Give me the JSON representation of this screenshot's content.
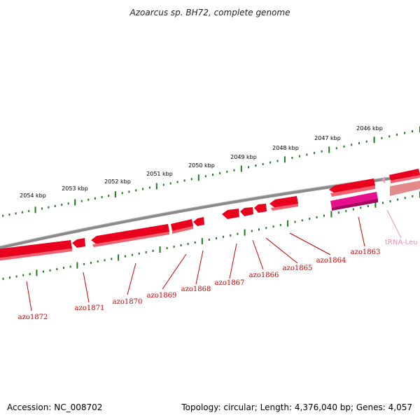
{
  "title": "Azoarcus sp. BH72, complete genome",
  "footer": {
    "accession": "Accession: NC_008702",
    "summary": "Topology: circular; Length: 4,376,040 bp; Genes: 4,057"
  },
  "colors": {
    "backbone": "#8a8a8a",
    "tick": "#1e7a1e",
    "gene": "#e8001c",
    "gene_label": "#cc0000",
    "trna": "#f08cb4",
    "pseudo": "#e60f8c"
  },
  "scale_labels": [
    "2054 kbp",
    "2053 kbp",
    "2052 kbp",
    "2051 kbp",
    "2050 kbp",
    "2049 kbp",
    "2048 kbp",
    "2047 kbp",
    "2046 kbp"
  ],
  "gene_labels": [
    "azo1872",
    "azo1871",
    "azo1870",
    "azo1869",
    "azo1868",
    "azo1867",
    "azo1866",
    "azo1865",
    "azo1864",
    "azo1863",
    "tRNA-Leu"
  ]
}
